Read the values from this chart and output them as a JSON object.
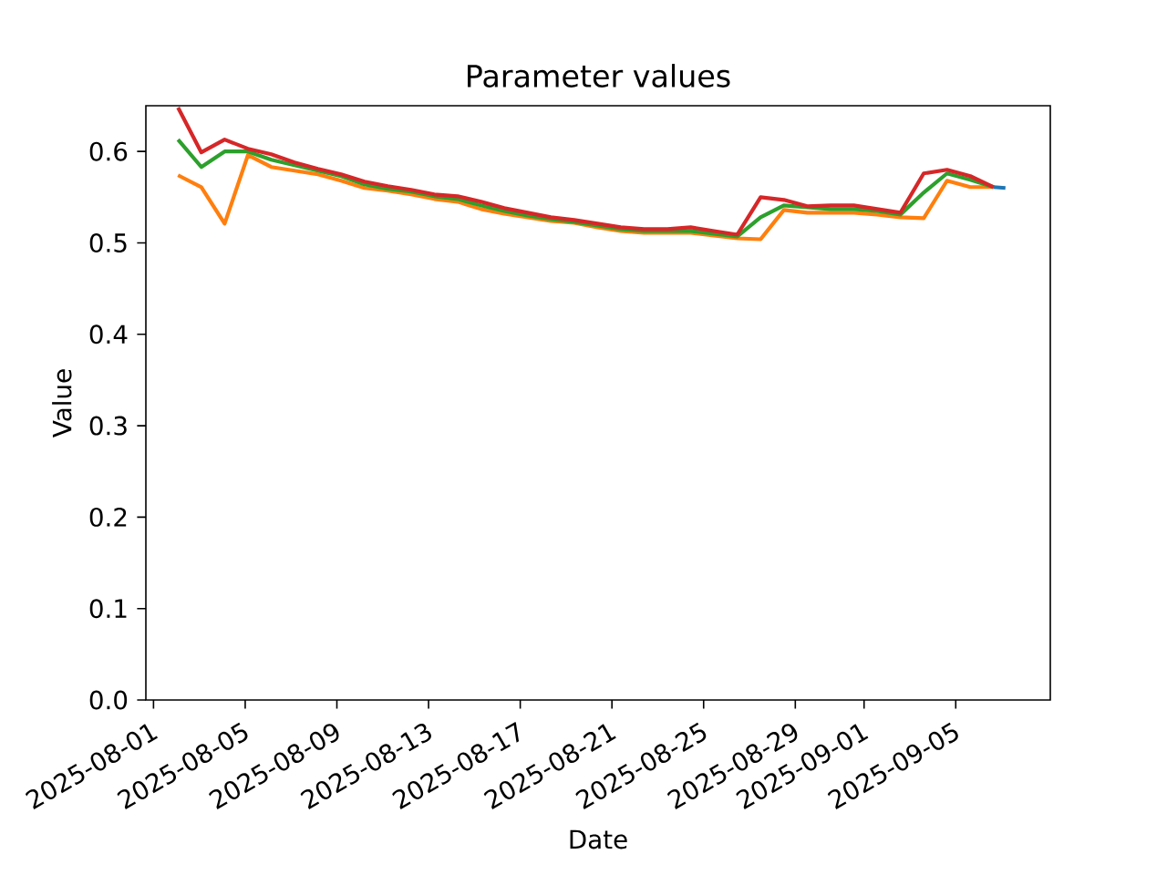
{
  "chart_data": {
    "type": "line",
    "title": "Parameter values",
    "xlabel": "Date",
    "ylabel": "Value",
    "x": [
      "2025-08-02T01:40",
      "2025-08-03T02:04",
      "2025-08-04T02:28",
      "2025-08-05T02:52",
      "2025-08-06T03:16",
      "2025-08-07T03:40",
      "2025-08-08T04:04",
      "2025-08-09T04:28",
      "2025-08-10T04:52",
      "2025-08-11T05:16",
      "2025-08-12T05:40",
      "2025-08-13T06:04",
      "2025-08-14T06:28",
      "2025-08-15T06:52",
      "2025-08-16T07:16",
      "2025-08-17T07:40",
      "2025-08-18T08:04",
      "2025-08-19T08:28",
      "2025-08-20T08:52",
      "2025-08-21T09:16",
      "2025-08-22T09:40",
      "2025-08-23T10:04",
      "2025-08-24T10:28",
      "2025-08-25T10:52",
      "2025-08-26T11:16",
      "2025-08-27T11:40",
      "2025-08-28T12:04",
      "2025-08-29T12:28",
      "2025-08-30T12:52",
      "2025-08-31T13:16",
      "2025-09-01T13:40",
      "2025-09-02T14:04",
      "2025-09-03T14:28",
      "2025-09-04T14:52",
      "2025-09-05T15:16",
      "2025-09-06T15:40"
    ],
    "series": [
      {
        "color": "#1f77b4",
        "x": [
          "2025-09-06T15:40",
          "2025-09-07T04:00"
        ],
        "values": [
          0.561,
          0.56
        ]
      },
      {
        "color": "#ff7f0e",
        "values": [
          0.574,
          0.561,
          0.521,
          0.596,
          0.583,
          0.579,
          0.575,
          0.568,
          0.56,
          0.557,
          0.553,
          0.548,
          0.545,
          0.537,
          0.532,
          0.528,
          0.524,
          0.522,
          0.517,
          0.513,
          0.511,
          0.511,
          0.511,
          0.508,
          0.505,
          0.504,
          0.536,
          0.533,
          0.533,
          0.533,
          0.531,
          0.528,
          0.527,
          0.568,
          0.561,
          0.561
        ]
      },
      {
        "color": "#2ca02c",
        "values": [
          0.613,
          0.583,
          0.6,
          0.6,
          0.591,
          0.585,
          0.579,
          0.573,
          0.564,
          0.559,
          0.556,
          0.551,
          0.548,
          0.541,
          0.535,
          0.53,
          0.526,
          0.523,
          0.519,
          0.515,
          0.513,
          0.513,
          0.513,
          0.51,
          0.507,
          0.528,
          0.541,
          0.539,
          0.537,
          0.537,
          0.535,
          0.531,
          0.555,
          0.576,
          0.569,
          0.561
        ]
      },
      {
        "color": "#d62728",
        "values": [
          0.648,
          0.599,
          0.613,
          0.603,
          0.597,
          0.588,
          0.581,
          0.575,
          0.567,
          0.562,
          0.558,
          0.553,
          0.551,
          0.545,
          0.538,
          0.533,
          0.528,
          0.525,
          0.521,
          0.517,
          0.515,
          0.515,
          0.517,
          0.513,
          0.509,
          0.55,
          0.547,
          0.54,
          0.541,
          0.541,
          0.537,
          0.533,
          0.576,
          0.58,
          0.573,
          0.561
        ]
      }
    ],
    "xlim": [
      "2025-07-31T16:00",
      "2025-09-09T03:00"
    ],
    "xticks": [
      "2025-08-01",
      "2025-08-05",
      "2025-08-09",
      "2025-08-13",
      "2025-08-17",
      "2025-08-21",
      "2025-08-25",
      "2025-08-29",
      "2025-09-01",
      "2025-09-05"
    ],
    "ylim": [
      0,
      0.65
    ],
    "yticks": [
      {
        "value": 0,
        "label": "0.0"
      },
      {
        "value": 0.1,
        "label": "0.1"
      },
      {
        "value": 0.2,
        "label": "0.2"
      },
      {
        "value": 0.3,
        "label": "0.3"
      },
      {
        "value": 0.4,
        "label": "0.4"
      },
      {
        "value": 0.5,
        "label": "0.5"
      },
      {
        "value": 0.6,
        "label": "0.6"
      }
    ]
  }
}
